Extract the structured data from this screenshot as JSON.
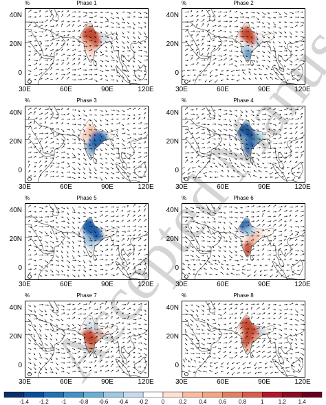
{
  "unit": "%",
  "lat_labels": [
    "40N",
    "20N",
    "0"
  ],
  "lon_labels": [
    "30E",
    "60E",
    "90E",
    "120E"
  ],
  "lon_labels_clipped": [
    "30E",
    "60E",
    "90E",
    "120E"
  ],
  "panels": [
    {
      "title": "Phase 1",
      "india_tone": "warm",
      "anomaly_pattern": "positive-north"
    },
    {
      "title": "Phase 2",
      "india_tone": "mixed",
      "anomaly_pattern": "positive-north-negative-south"
    },
    {
      "title": "Phase 3",
      "india_tone": "mixed",
      "anomaly_pattern": "negative-central-east"
    },
    {
      "title": "Phase 4",
      "india_tone": "cool",
      "anomaly_pattern": "negative-widespread"
    },
    {
      "title": "Phase 5",
      "india_tone": "cool",
      "anomaly_pattern": "negative-strong"
    },
    {
      "title": "Phase 6",
      "india_tone": "mixed",
      "anomaly_pattern": "negative-north-positive-south"
    },
    {
      "title": "Phase 7",
      "india_tone": "warm",
      "anomaly_pattern": "positive-central"
    },
    {
      "title": "Phase 8",
      "india_tone": "warm",
      "anomaly_pattern": "positive-widespread"
    }
  ],
  "colorbar": {
    "ticks": [
      "-1.4",
      "-1.2",
      "-1",
      "-0.8",
      "-0.6",
      "-0.4",
      "-0.2",
      "0",
      "0.2",
      "0.4",
      "0.6",
      "0.8",
      "1",
      "1.2",
      "1.4"
    ],
    "colors": [
      "#08306b",
      "#0b4f9c",
      "#2171b5",
      "#4292c6",
      "#6baed6",
      "#9ecae1",
      "#c6dbef",
      "#ffffff",
      "#fee0d2",
      "#fcbba1",
      "#f4a582",
      "#e08262",
      "#d6604d",
      "#b2182b",
      "#8b0d1f",
      "#67001f"
    ]
  },
  "colors": {
    "warm_strong": "#c4442a",
    "warm_light": "#f2a98c",
    "cool_strong": "#1f5fa8",
    "cool_light": "#9ecae1",
    "land_outline": "#333333",
    "vector": "#111111"
  },
  "watermark_text": "Accepted Manuscript"
}
